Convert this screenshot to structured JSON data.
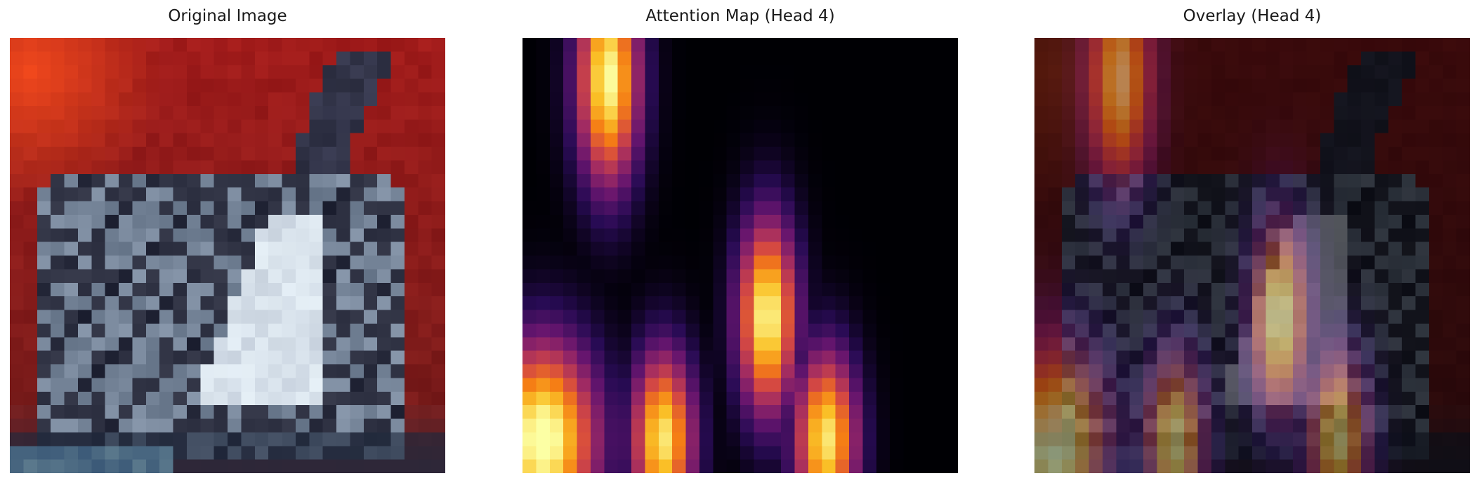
{
  "panels": [
    {
      "title": "Original Image"
    },
    {
      "title": "Attention Map (Head 4)"
    },
    {
      "title": "Overlay (Head 4)"
    }
  ],
  "colors": {
    "background_red": "#9b1c1a",
    "bright_orange": "#f0441a",
    "car_white": "#d8e2ec",
    "car_dark": "#1a1c2c",
    "inferno_low": "#000004",
    "inferno_high": "#fcffa4"
  }
}
